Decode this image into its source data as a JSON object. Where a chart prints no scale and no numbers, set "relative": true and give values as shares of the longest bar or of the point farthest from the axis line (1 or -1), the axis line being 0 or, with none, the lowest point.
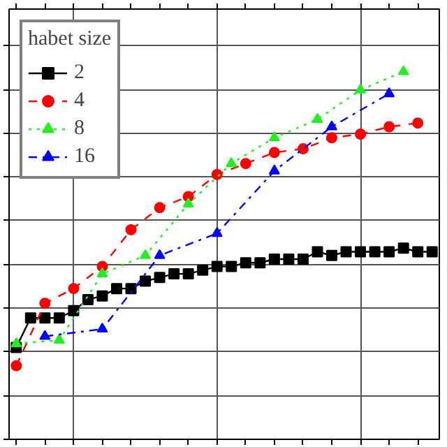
{
  "chart_data": {
    "type": "line",
    "relative": true,
    "legend_title": "habet size",
    "legend": "top left",
    "grid": true,
    "categories": [
      null,
      null,
      null,
      null,
      null,
      null,
      null,
      null,
      null,
      null,
      null,
      null,
      null,
      null,
      null,
      null,
      null,
      null,
      null,
      null,
      null,
      null,
      null,
      null,
      null,
      null,
      null,
      null,
      null,
      null
    ],
    "series": [
      {
        "name": "2",
        "color": "#000000",
        "marker": "square",
        "line_style": "solid",
        "values": [
          0.25,
          0.33,
          0.33,
          0.33,
          0.35,
          0.38,
          0.39,
          0.41,
          0.41,
          0.43,
          0.44,
          0.45,
          0.45,
          0.46,
          0.47,
          0.47,
          0.48,
          0.48,
          0.49,
          0.49,
          0.49,
          0.51,
          0.5,
          0.51,
          0.51,
          0.51,
          0.51,
          0.52,
          0.51,
          0.51
        ]
      },
      {
        "name": "4",
        "color": "#ff0000",
        "marker": "circle",
        "line_style": "dashed",
        "values": [
          0.2,
          null,
          0.37,
          null,
          0.41,
          null,
          0.47,
          null,
          0.57,
          null,
          0.63,
          null,
          0.66,
          null,
          0.72,
          null,
          0.75,
          null,
          0.78,
          null,
          0.79,
          null,
          0.82,
          null,
          0.83,
          null,
          0.85,
          null,
          0.86,
          null
        ]
      },
      {
        "name": "8",
        "color": "#22ee22",
        "marker": "triangle",
        "line_style": "dotted",
        "values": [
          0.26,
          null,
          null,
          0.27,
          null,
          null,
          0.45,
          null,
          null,
          0.5,
          null,
          null,
          0.64,
          null,
          null,
          0.75,
          null,
          null,
          0.82,
          null,
          null,
          0.87,
          null,
          null,
          0.95,
          null,
          null,
          1.0,
          null,
          null
        ]
      },
      {
        "name": "16",
        "color": "#0000ff",
        "marker": "triangle",
        "line_style": "dashdot",
        "values": [
          null,
          null,
          0.28,
          null,
          null,
          null,
          0.3,
          null,
          null,
          null,
          0.5,
          null,
          null,
          null,
          0.56,
          null,
          null,
          null,
          0.73,
          null,
          null,
          null,
          0.85,
          null,
          null,
          null,
          0.94,
          null,
          null,
          null
        ]
      }
    ]
  }
}
